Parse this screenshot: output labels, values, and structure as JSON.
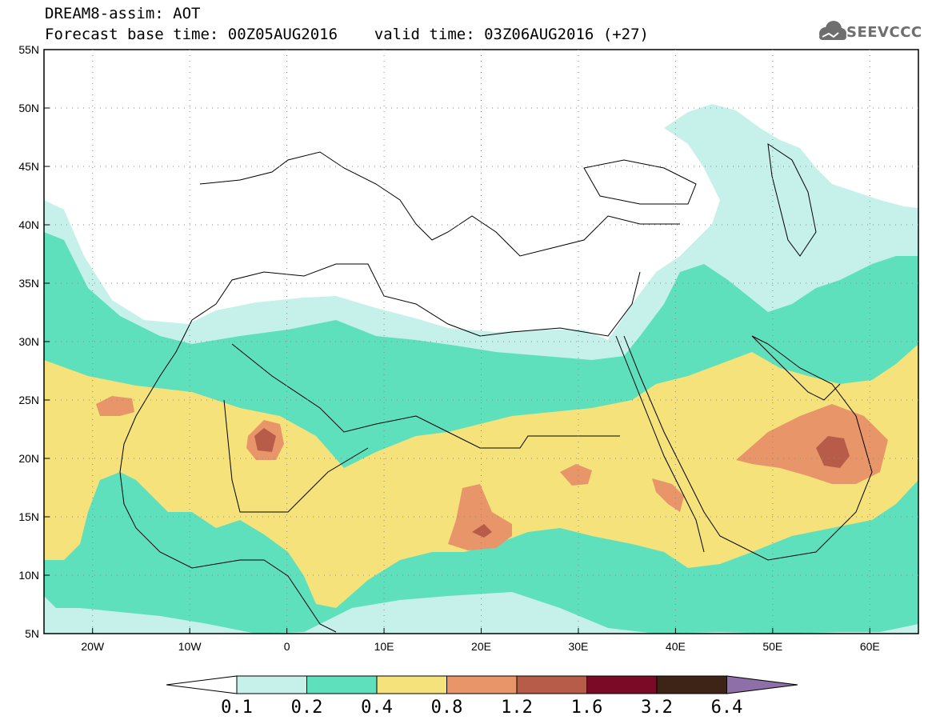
{
  "header": {
    "line1": "DREAM8-assim: AOT",
    "line2": "Forecast base time: 00Z05AUG2016    valid time: 03Z06AUG2016 (+27)"
  },
  "logo": {
    "text": "SEEVCCC",
    "icon": "cloud-icon"
  },
  "map": {
    "lon_labels": [
      "20W",
      "10W",
      "0",
      "10E",
      "20E",
      "30E",
      "40E",
      "50E",
      "60E"
    ],
    "lat_labels": [
      "55N",
      "50N",
      "45N",
      "40N",
      "35N",
      "30N",
      "25N",
      "20N",
      "15N",
      "10N",
      "5N"
    ],
    "lon_range": [
      -25,
      65
    ],
    "lat_range": [
      5,
      55
    ],
    "grid": "dotted"
  },
  "colorbar": {
    "labels": [
      "0.1",
      "0.2",
      "0.4",
      "0.8",
      "1.2",
      "1.6",
      "3.2",
      "6.4"
    ],
    "colors": {
      "below": "#ffffff",
      "c01": "#c6f1ea",
      "c02": "#5fe0bd",
      "c04": "#f5e27a",
      "c08": "#e8956a",
      "c12": "#b85c4a",
      "c16": "#7b0a26",
      "c32": "#3e2416",
      "above": "#8f6fa7"
    }
  }
}
